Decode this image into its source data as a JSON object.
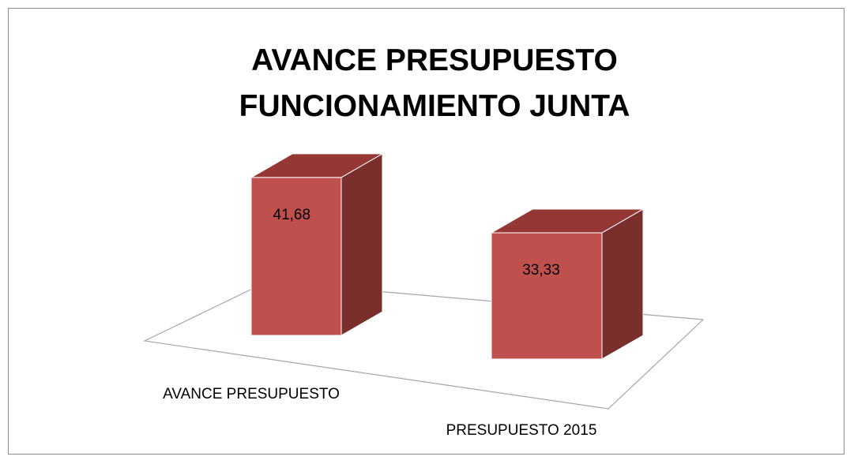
{
  "chart_data": {
    "type": "bar3d",
    "title": "AVANCE PRESUPUESTO FUNCIONAMIENTO JUNTA",
    "categories": [
      "AVANCE PRESUPUESTO",
      "PRESUPUESTO 2015"
    ],
    "values": [
      41.68,
      33.33
    ],
    "value_labels": [
      "41,68",
      "33,33"
    ],
    "color": "#c0504d"
  }
}
